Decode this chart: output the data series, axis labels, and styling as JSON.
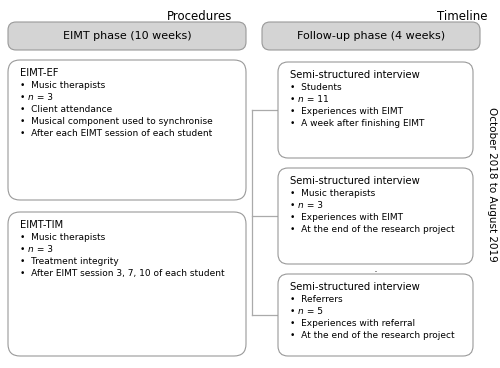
{
  "title_procedures": "Procedures",
  "title_timeline": "Timeline",
  "header_left": "EIMT phase (10 weeks)",
  "header_right": "Follow-up phase (4 weeks)",
  "box_eimt_ef_title": "EIMT-EF",
  "box_eimt_ef_bullets": [
    "Music therapists",
    "n = 3",
    "Client attendance",
    "Musical component used to synchronise",
    "After each EIMT session of each student"
  ],
  "box_eimt_tim_title": "EIMT-TIM",
  "box_eimt_tim_bullets": [
    "Music therapists",
    "n = 3",
    "Treatment integrity",
    "After EIMT session 3, 7, 10 of each student"
  ],
  "box_interview1_title": "Semi-structured interview",
  "box_interview1_bullets": [
    "Students",
    "n = 11",
    "Experiences with EIMT",
    "A week after finishing EIMT"
  ],
  "box_interview2_title": "Semi-structured interview",
  "box_interview2_bullets": [
    "Music therapists",
    "n = 3",
    "Experiences with EIMT",
    "At the end of the research project"
  ],
  "box_interview3_title": "Semi-structured interview",
  "box_interview3_bullets": [
    "Referrers",
    "n = 5",
    "Experiences with referral",
    "At the end of the research project"
  ],
  "timeline_text": "October 2018 to August 2019",
  "dot_text": ".",
  "bg_color": "#ffffff",
  "header_fill": "#d4d4d4",
  "box_fill": "#ffffff",
  "border_color": "#999999",
  "line_color": "#aaaaaa",
  "font_size_header": 8.0,
  "font_size_title": 7.2,
  "font_size_body": 6.5,
  "font_size_col_header": 8.5,
  "font_size_timeline": 7.5
}
